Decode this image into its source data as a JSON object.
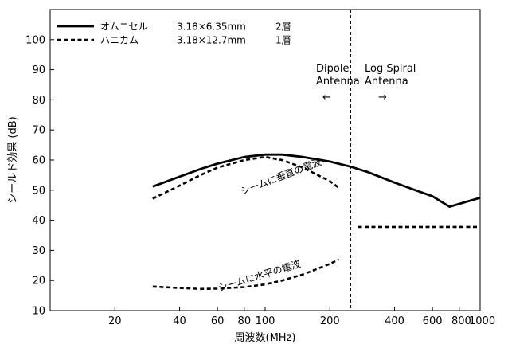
{
  "chart_data": {
    "type": "line",
    "xlabel": "周波数(MHz)",
    "ylabel": "シールド効果 (dB)",
    "x_scale": "log",
    "xlim": [
      10,
      1000
    ],
    "ylim": [
      10,
      110
    ],
    "xticks": [
      20,
      40,
      60,
      80,
      100,
      200,
      400,
      600,
      800,
      1000
    ],
    "xtick_labels": [
      "20",
      "40",
      "60",
      "80",
      "100",
      "200",
      "400",
      "600",
      "800",
      "1000"
    ],
    "yticks": [
      10,
      20,
      30,
      40,
      50,
      60,
      70,
      80,
      90,
      100
    ],
    "grid": false,
    "legend_position": "top-left",
    "legend": [
      {
        "name": "オムニセル",
        "spec": "3.18×6.35mm",
        "layers": "2層",
        "style": "solid"
      },
      {
        "name": "ハニカム",
        "spec": "3.18×12.7mm",
        "layers": "1層",
        "style": "dashed"
      }
    ],
    "divider_x": 250,
    "annotations": {
      "dipole": [
        "Dipole",
        "Antenna"
      ],
      "log_spiral": [
        "Log Spiral",
        "Antenna"
      ],
      "dipole_arrow": "←",
      "log_spiral_arrow": "→"
    },
    "series": [
      {
        "name": "オムニセル",
        "style": "solid",
        "color": "#000000",
        "points": [
          [
            30,
            51.2
          ],
          [
            40,
            54.5
          ],
          [
            50,
            57
          ],
          [
            60,
            58.8
          ],
          [
            80,
            61
          ],
          [
            100,
            61.8
          ],
          [
            120,
            61.8
          ],
          [
            150,
            61
          ],
          [
            200,
            59.5
          ],
          [
            250,
            57.8
          ],
          [
            300,
            56
          ],
          [
            400,
            52.5
          ],
          [
            500,
            50
          ],
          [
            600,
            48
          ],
          [
            720,
            44.5
          ],
          [
            1000,
            47.5
          ]
        ]
      },
      {
        "name": "ハニカム",
        "style": "dashed",
        "color": "#000000",
        "points": [
          [
            30,
            47.2
          ],
          [
            40,
            51.5
          ],
          [
            50,
            55
          ],
          [
            60,
            57.5
          ],
          [
            80,
            60
          ],
          [
            100,
            61
          ],
          [
            120,
            60
          ],
          [
            150,
            57.5
          ],
          [
            200,
            53
          ],
          [
            220,
            50.8
          ]
        ]
      },
      {
        "name": "ハニカム",
        "style": "dashed",
        "color": "#000000",
        "points": [
          [
            270,
            37.8
          ],
          [
            1000,
            37.8
          ]
        ]
      },
      {
        "name": "ハニカム",
        "style": "dashed",
        "color": "#000000",
        "points": [
          [
            30,
            18
          ],
          [
            40,
            17.5
          ],
          [
            50,
            17.2
          ],
          [
            60,
            17.3
          ],
          [
            80,
            17.8
          ],
          [
            100,
            18.7
          ],
          [
            120,
            20
          ],
          [
            150,
            22
          ],
          [
            200,
            25.5
          ],
          [
            220,
            27
          ]
        ]
      }
    ],
    "curve_labels": [
      {
        "text": "シームに垂直の電波",
        "x": 120,
        "y": 53.5
      },
      {
        "text": "シームに水平の電波",
        "x": 95,
        "y": 20.5
      }
    ]
  }
}
